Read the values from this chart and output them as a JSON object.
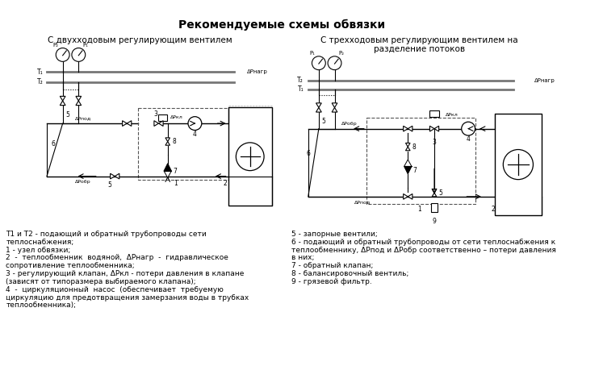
{
  "title": "Рекомендуемые схемы обвязки",
  "subtitle_left": "С двухходовым регулирующим вентилем",
  "subtitle_right": "С трехходовым регулирующим вентилем на\nразделение потоков",
  "legend_left": [
    "Т1 и Т2 - подающий и обратный трубопроводы сети",
    "теплоснабжения;",
    "1 - узел обвязки;",
    "2  -  теплообменник  водяной,  ΔРнагр  -  гидравлическое",
    "сопротивление теплообменника;",
    "3 - регулирующий клапан, ΔРкл - потери давления в клапане",
    "(зависят от типоразмера выбираемого клапана);",
    "4  -  циркуляционный  насос  (обеспечивает  требуемую",
    "циркуляцию для предотвращения замерзания воды в трубках",
    "теплообменника);"
  ],
  "legend_right": [
    "5 - запорные вентили;",
    "6 - подающий и обратный трубопроводы от сети теплоснабжения к",
    "теплообменнику, ΔРпод и ΔРобр соответственно – потери давления",
    "в них;",
    "7 - обратный клапан;",
    "8 - балансировочный вентиль;",
    "9 - грязевой фильтр."
  ],
  "bg_color": "#ffffff",
  "lc": "#000000",
  "gray_pipe": "#777777",
  "title_fontsize": 10,
  "sub_fontsize": 7.5,
  "legend_fontsize": 6.5
}
